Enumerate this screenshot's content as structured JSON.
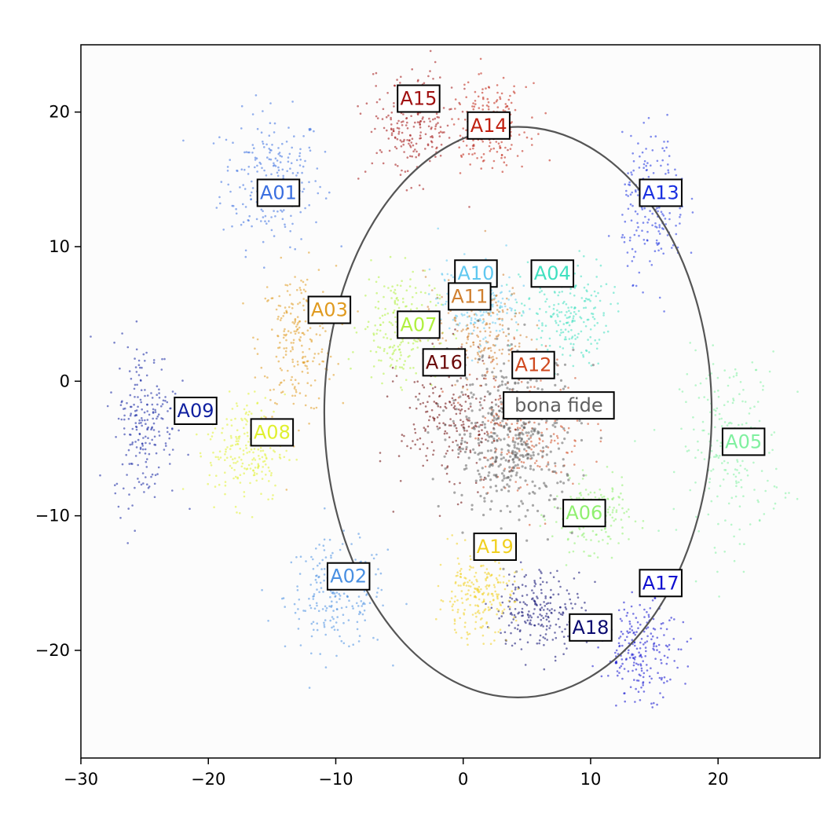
{
  "chart_data": {
    "type": "scatter",
    "title": "",
    "xlabel": "",
    "ylabel": "",
    "xlim": [
      -30,
      28
    ],
    "ylim": [
      -28,
      25
    ],
    "xticks": [
      -30,
      -20,
      -10,
      0,
      10,
      20
    ],
    "yticks": [
      -20,
      -10,
      0,
      10,
      20
    ],
    "xtick_labels": [
      "−30",
      "−20",
      "−10",
      "0",
      "10",
      "20"
    ],
    "ytick_labels": [
      "−20",
      "−10",
      "0",
      "10",
      "20"
    ],
    "grid": false,
    "ellipse": {
      "center": [
        4.3,
        -2.3
      ],
      "radius_x": 15.2,
      "radius_y": 21.2,
      "color": "#555555"
    },
    "clusters": [
      {
        "name": "A01",
        "center": [
          -15,
          15
        ],
        "spread": [
          4.0,
          5.0
        ],
        "color": "#3a6fe0",
        "label_pos": [
          -14.5,
          14
        ]
      },
      {
        "name": "A02",
        "center": [
          -10,
          -16
        ],
        "spread": [
          4.0,
          4.0
        ],
        "color": "#4a90e2",
        "label_pos": [
          -9,
          -14.5
        ]
      },
      {
        "name": "A03",
        "center": [
          -13,
          3
        ],
        "spread": [
          3.0,
          5.5
        ],
        "color": "#e09b20",
        "label_pos": [
          -10.5,
          5.3
        ]
      },
      {
        "name": "A04",
        "center": [
          8,
          5
        ],
        "spread": [
          3.5,
          4.0
        ],
        "color": "#40e0c0",
        "label_pos": [
          7,
          8
        ]
      },
      {
        "name": "A05",
        "center": [
          21,
          -5
        ],
        "spread": [
          4.0,
          7.0
        ],
        "color": "#80f0a0",
        "label_pos": [
          22,
          -4.5
        ]
      },
      {
        "name": "A06",
        "center": [
          10,
          -10
        ],
        "spread": [
          3.0,
          2.5
        ],
        "color": "#90f070",
        "label_pos": [
          9.5,
          -9.8
        ]
      },
      {
        "name": "A07",
        "center": [
          -5,
          4
        ],
        "spread": [
          3.0,
          4.0
        ],
        "color": "#b0f040",
        "label_pos": [
          -3.5,
          4.2
        ]
      },
      {
        "name": "A08",
        "center": [
          -17,
          -5
        ],
        "spread": [
          3.0,
          4.0
        ],
        "color": "#e0f030",
        "label_pos": [
          -15,
          -3.8
        ]
      },
      {
        "name": "A09",
        "center": [
          -25,
          -3
        ],
        "spread": [
          2.5,
          6.0
        ],
        "color": "#1020a0",
        "label_pos": [
          -21,
          -2.2
        ]
      },
      {
        "name": "A10",
        "center": [
          1,
          6
        ],
        "spread": [
          3.0,
          3.0
        ],
        "color": "#60c8f0",
        "label_pos": [
          1,
          8
        ]
      },
      {
        "name": "A11",
        "center": [
          1,
          4
        ],
        "spread": [
          4.0,
          4.0
        ],
        "color": "#d08030",
        "label_pos": [
          0.5,
          6.3
        ]
      },
      {
        "name": "A12",
        "center": [
          5,
          -3
        ],
        "spread": [
          4.5,
          5.0
        ],
        "color": "#d04a20",
        "label_pos": [
          5.5,
          1.2
        ]
      },
      {
        "name": "A13",
        "center": [
          15,
          13
        ],
        "spread": [
          2.5,
          5.0
        ],
        "color": "#1a30e0",
        "label_pos": [
          15.5,
          14
        ]
      },
      {
        "name": "A14",
        "center": [
          2,
          19
        ],
        "spread": [
          3.0,
          3.0
        ],
        "color": "#c02010",
        "label_pos": [
          2,
          19
        ]
      },
      {
        "name": "A15",
        "center": [
          -4,
          19
        ],
        "spread": [
          3.5,
          4.0
        ],
        "color": "#a01010",
        "label_pos": [
          -3.5,
          21
        ]
      },
      {
        "name": "A16",
        "center": [
          -1,
          -3
        ],
        "spread": [
          4.0,
          5.0
        ],
        "color": "#6a0808",
        "label_pos": [
          -1.5,
          1.4
        ]
      },
      {
        "name": "A17",
        "center": [
          14,
          -20
        ],
        "spread": [
          3.0,
          3.5
        ],
        "color": "#1010d0",
        "label_pos": [
          15.5,
          -15
        ]
      },
      {
        "name": "A18",
        "center": [
          6,
          -17
        ],
        "spread": [
          3.5,
          3.0
        ],
        "color": "#0a0a70",
        "label_pos": [
          10,
          -18.3
        ]
      },
      {
        "name": "A19",
        "center": [
          1,
          -16
        ],
        "spread": [
          3.0,
          3.0
        ],
        "color": "#f0d020",
        "label_pos": [
          2.5,
          -12.3
        ]
      },
      {
        "name": "bona fide",
        "center": [
          4,
          -4
        ],
        "spread": [
          5.0,
          6.0
        ],
        "color": "#606060",
        "label_pos": [
          7.5,
          -1.8
        ]
      }
    ]
  }
}
